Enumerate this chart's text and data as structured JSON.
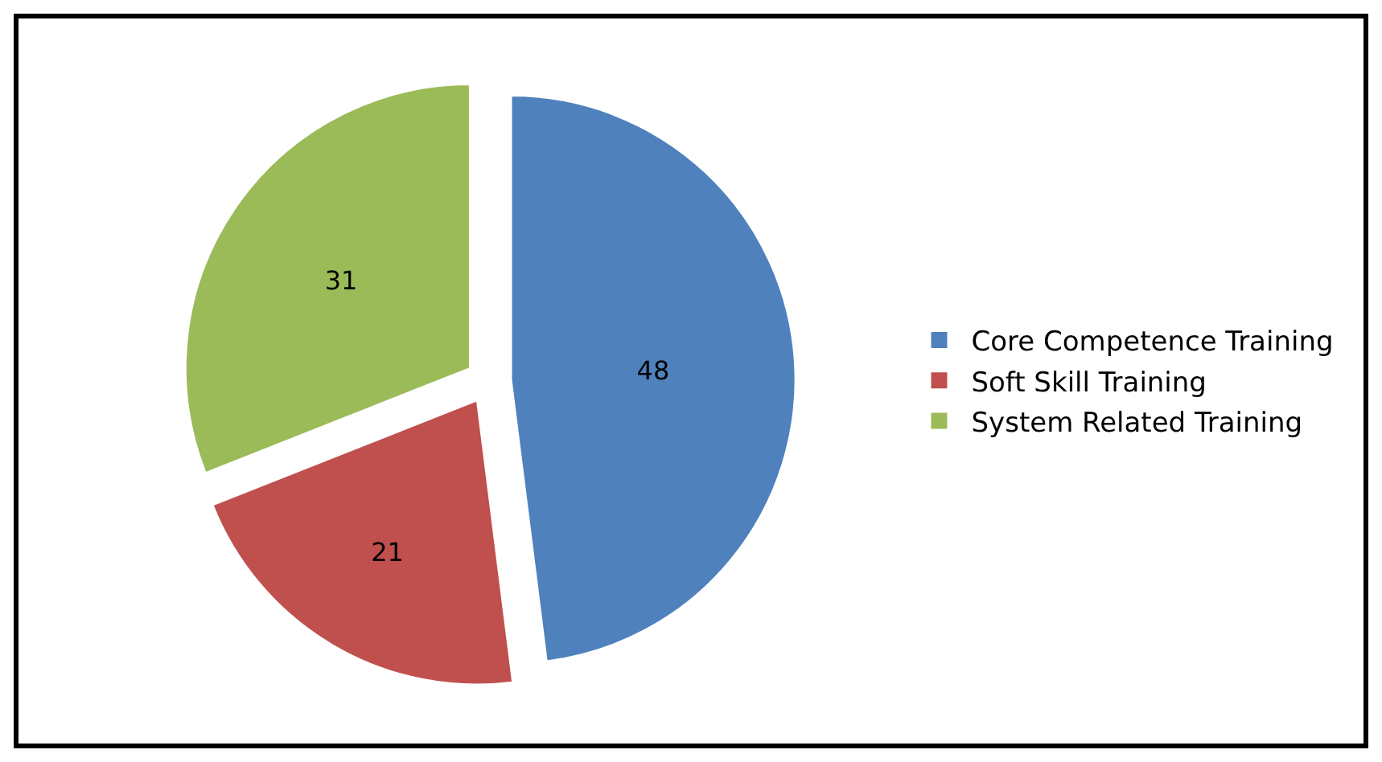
{
  "chart_data": {
    "type": "pie",
    "categories": [
      "Core Competence Training",
      "Soft Skill Training",
      "System Related Training"
    ],
    "values": [
      48,
      21,
      31
    ],
    "colors": [
      "#4f81bd",
      "#c0504d",
      "#9bbb59"
    ],
    "data_labels": true,
    "legend": "right"
  }
}
